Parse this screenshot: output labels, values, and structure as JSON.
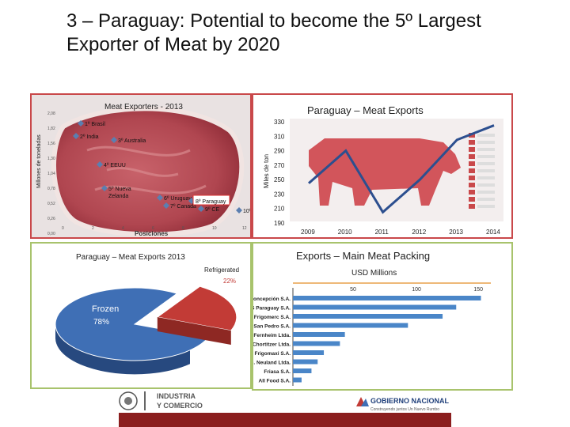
{
  "slide": {
    "title_line1": "3 – Paraguay:  Potential to become the 5º Largest",
    "title_line2": "Exporter of Meat by 2020"
  },
  "colors": {
    "border_red": "#c9484a",
    "border_green": "#a8c36c",
    "line_blue": "#2c4f8f",
    "bar_blue": "#4a86c8",
    "pie_blue": "#3f6fb5",
    "pie_red": "#c23b36",
    "footer_red": "#8b1e1e"
  },
  "meat_exporters": {
    "title": "Meat Exporters - 2013",
    "ylabel": "Millones de toneladas",
    "xlabel": "Posiciones",
    "ytick_labels": [
      "2,08",
      "1,82",
      "1,56",
      "1,30",
      "1,04",
      "0,78",
      "0,52",
      "0,26",
      "0,00"
    ],
    "xtick_labels": [
      "0",
      "2",
      "4",
      "6",
      "8",
      "10",
      "12"
    ],
    "points": [
      {
        "label": "1º Brasil"
      },
      {
        "label": "2º India"
      },
      {
        "label": "3º Australia"
      },
      {
        "label": "4º EEUU"
      },
      {
        "label": "5º Nueva Zelanda"
      },
      {
        "label": "6º Uruguay"
      },
      {
        "label": "7º Canadá"
      },
      {
        "label": "8º Paraguay"
      },
      {
        "label": "9º CE"
      },
      {
        "label": "10º México"
      }
    ]
  },
  "chart_data": [
    {
      "type": "line",
      "title": "Paraguay – Meat Exports",
      "ylabel": "Miles de ton",
      "x": [
        "2009",
        "2010",
        "2011",
        "2012",
        "2013",
        "2014"
      ],
      "ylim": [
        190,
        330
      ],
      "yticks": [
        "330",
        "310",
        "290",
        "270",
        "250",
        "230",
        "210",
        "190"
      ],
      "series": [
        {
          "values": [
            245,
            290,
            205,
            250,
            305,
            325
          ]
        }
      ]
    },
    {
      "type": "pie",
      "title": "Paraguay – Meat Exports 2013",
      "slices": [
        {
          "label": "Frozen",
          "value_label": "78%",
          "value": 78
        },
        {
          "label": "Refrigerated",
          "value_label": "22%",
          "value": 22
        }
      ]
    },
    {
      "type": "bar",
      "title": "Exports – Main Meat Packing",
      "subtitle": "USD Millions",
      "xticks": [
        "50",
        "100",
        "150"
      ],
      "xlim": [
        0,
        160
      ],
      "categories": [
        "Concepción S.A.",
        "JBS Paraguay S.A.",
        "Frigomerc S.A.",
        "San Pedro S.A.",
        "Coop. Fernheim Ltda.",
        "Coop. Chortitzer Ltda.",
        "Frigomaxi S.A.",
        "Coop. Neuland Ltda.",
        "Friasa S.A.",
        "All Food S.A."
      ],
      "values": [
        152,
        132,
        121,
        93,
        42,
        38,
        25,
        20,
        15,
        7
      ]
    }
  ],
  "footer": {
    "left_logo_line1": "INDUSTRIA",
    "left_logo_line2": "Y COMERCIO",
    "right_logo_line1": "GOBIERNO NACIONAL",
    "right_logo_line2": "Construyendo juntos Un Nuevo Rumbo"
  }
}
